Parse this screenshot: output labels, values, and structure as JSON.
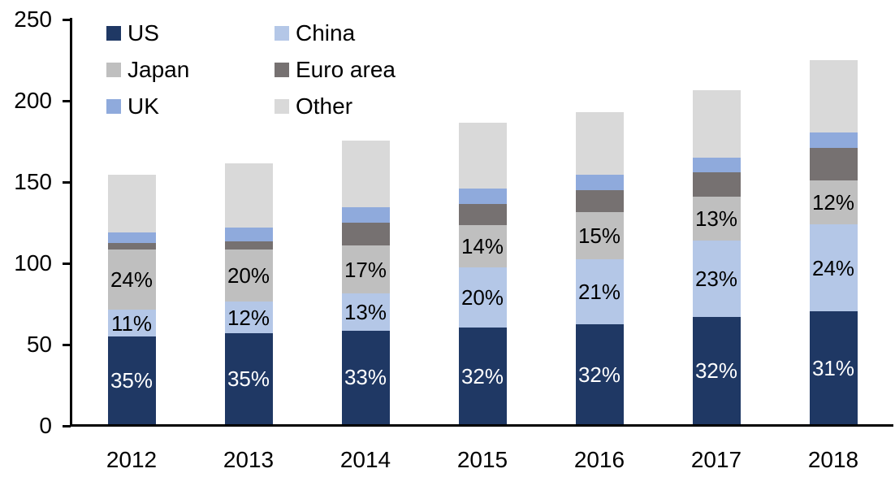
{
  "chart_data": {
    "type": "bar",
    "subtype": "stacked-column",
    "title": "",
    "xlabel": "",
    "ylabel": "",
    "categories": [
      "2012",
      "2013",
      "2014",
      "2015",
      "2016",
      "2017",
      "2018"
    ],
    "series": [
      {
        "name": "US",
        "color": "#1f3864",
        "values": [
          53.8,
          56.1,
          57.6,
          59.3,
          61.4,
          65.8,
          69.5
        ],
        "data_labels": [
          "35%",
          "35%",
          "33%",
          "32%",
          "32%",
          "32%",
          "31%"
        ],
        "data_label_color": "#ffffff"
      },
      {
        "name": "China",
        "color": "#b4c7e7",
        "values": [
          16.9,
          19.2,
          22.7,
          37.1,
          40.3,
          47.3,
          53.5
        ],
        "data_labels": [
          "11%",
          "12%",
          "13%",
          "20%",
          "21%",
          "23%",
          "24%"
        ],
        "data_label_color": "#000000"
      },
      {
        "name": "Japan",
        "color": "#bfbfbf",
        "values": [
          36.9,
          32.1,
          29.7,
          25.9,
          28.8,
          26.7,
          27.0
        ],
        "data_labels": [
          "24%",
          "20%",
          "17%",
          "14%",
          "15%",
          "13%",
          "12%"
        ],
        "data_label_color": "#000000"
      },
      {
        "name": "Euro area",
        "color": "#767171",
        "values": [
          3.7,
          5.0,
          14.2,
          13.0,
          13.5,
          15.0,
          20.0
        ],
        "data_labels": null
      },
      {
        "name": "UK",
        "color": "#8faadc",
        "values": [
          6.9,
          8.8,
          9.2,
          9.5,
          9.3,
          9.2,
          9.5
        ],
        "data_labels": null
      },
      {
        "name": "Other",
        "color": "#d9d9d9",
        "values": [
          35.4,
          39.1,
          41.1,
          40.5,
          38.7,
          41.7,
          44.5
        ],
        "data_labels": null
      }
    ],
    "bar_totals": [
      153.6,
      160.3,
      174.5,
      185.3,
      192.0,
      205.7,
      224.0
    ],
    "y_axis": {
      "min": 0,
      "max": 250,
      "tick_step": 50,
      "tick_labels": [
        "0",
        "50",
        "100",
        "150",
        "200",
        "250"
      ]
    },
    "legend": {
      "position": "inside-top-left",
      "columns": 2,
      "order": [
        "US",
        "China",
        "Japan",
        "Euro area",
        "UK",
        "Other"
      ]
    },
    "grid": false,
    "axis_color": "#000000",
    "text_color": "#000000",
    "background_color": "#ffffff"
  }
}
